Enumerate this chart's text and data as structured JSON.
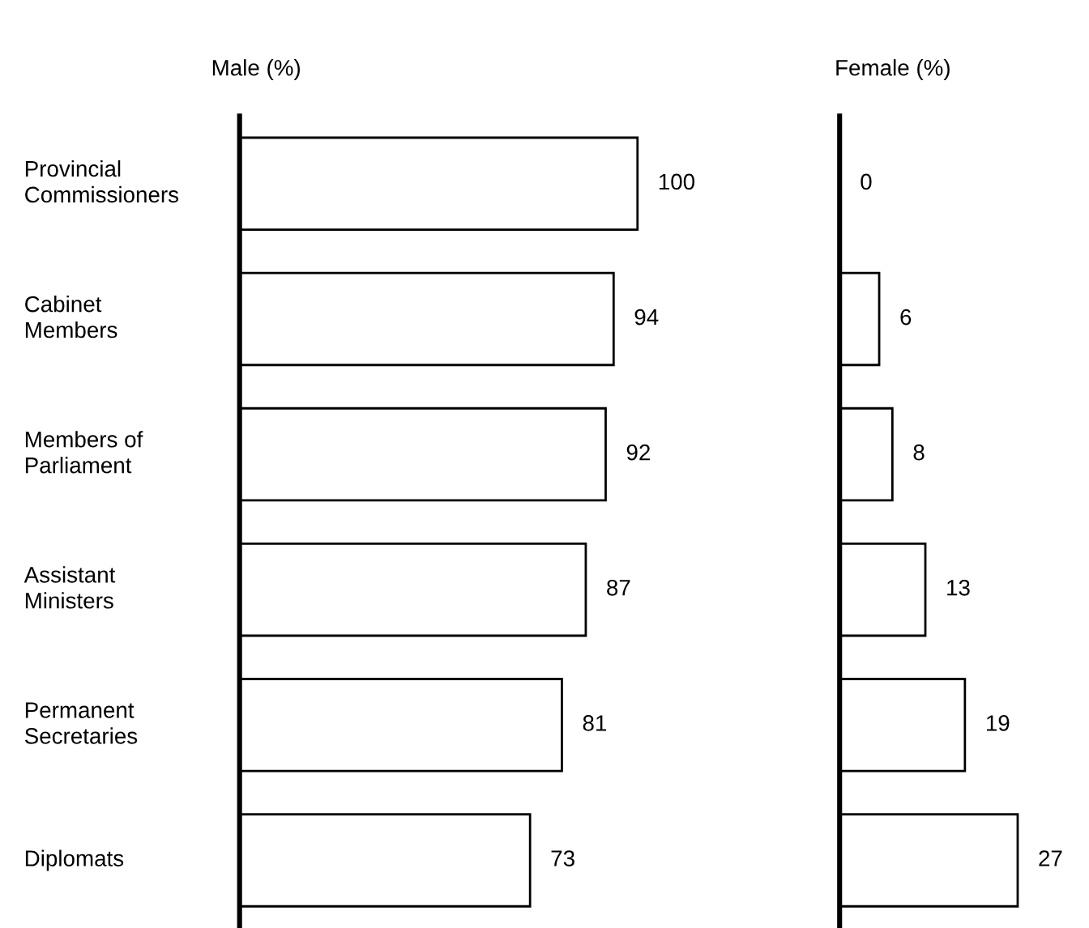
{
  "chart_data": [
    {
      "type": "bar",
      "orientation": "horizontal",
      "title": "Male (%)",
      "categories": [
        "Provincial\nCommissioners",
        "Cabinet\nMembers",
        "Members of\nParliament",
        "Assistant\nMinisters",
        "Permanent\nSecretaries",
        "Diplomats"
      ],
      "values": [
        100,
        94,
        92,
        87,
        81,
        73
      ],
      "color": "#ffffff",
      "data_labels": true,
      "tick_labels": "y"
    },
    {
      "type": "bar",
      "orientation": "horizontal",
      "title": "Female (%)",
      "categories": [
        null,
        null,
        null,
        null,
        null,
        null
      ],
      "values": [
        0,
        6,
        8,
        13,
        19,
        27
      ],
      "color": "#ffffff",
      "data_labels": true,
      "tick_labels": false
    }
  ]
}
